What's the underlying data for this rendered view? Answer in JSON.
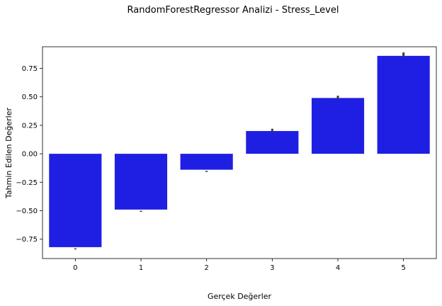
{
  "chart_data": {
    "type": "bar",
    "title": "RandomForestRegressor Analizi - Stress_Level",
    "xlabel": "Gerçek Değerler",
    "ylabel": "Tahmin Edilen Değerler",
    "categories": [
      "0",
      "1",
      "2",
      "3",
      "4",
      "5"
    ],
    "values": [
      -0.82,
      -0.49,
      -0.14,
      0.2,
      0.49,
      0.86
    ],
    "error_low": [
      -0.84,
      -0.51,
      -0.16,
      0.19,
      0.48,
      0.85
    ],
    "error_high": [
      -0.83,
      -0.5,
      -0.15,
      0.22,
      0.51,
      0.89
    ],
    "ylim": [
      -0.92,
      0.94
    ],
    "yticks": [
      -0.75,
      -0.5,
      -0.25,
      0.0,
      0.25,
      0.5,
      0.75
    ],
    "ytick_labels": [
      "−0.75",
      "−0.50",
      "−0.25",
      "0.00",
      "0.25",
      "0.50",
      "0.75"
    ],
    "grid": false,
    "bar_color": "#1f1fe3",
    "errorbar_color": "#3d3d3d"
  }
}
